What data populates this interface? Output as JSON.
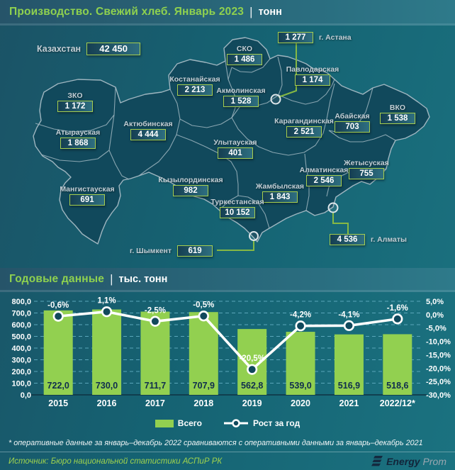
{
  "header": {
    "title": "Производство. Свежий хлеб. Январь 2023",
    "separator": "|",
    "unit": "тонн"
  },
  "map": {
    "country": {
      "name": "Казахстан",
      "value": "42 450"
    },
    "regions": [
      {
        "name": "г. Астана",
        "value": "1 277"
      },
      {
        "name": "СКО",
        "value": "1 486"
      },
      {
        "name": "Павлодарская",
        "value": "1 174"
      },
      {
        "name": "Костанайская",
        "value": "2 213"
      },
      {
        "name": "Акмолинская",
        "value": "1 528"
      },
      {
        "name": "ЗКО",
        "value": "1 172"
      },
      {
        "name": "Актюбинская",
        "value": "4 444"
      },
      {
        "name": "Атырауская",
        "value": "1 868"
      },
      {
        "name": "Карагандинская",
        "value": "2 521"
      },
      {
        "name": "Абайская",
        "value": "703"
      },
      {
        "name": "ВКО",
        "value": "1 538"
      },
      {
        "name": "Улытауская",
        "value": "401"
      },
      {
        "name": "Мангистауская",
        "value": "691"
      },
      {
        "name": "Кызылординская",
        "value": "982"
      },
      {
        "name": "Жамбылская",
        "value": "1 843"
      },
      {
        "name": "Алматинская",
        "value": "2 546"
      },
      {
        "name": "Жетысуская",
        "value": "755"
      },
      {
        "name": "Туркестанская",
        "value": "10 152"
      },
      {
        "name": "г. Шымкент",
        "value": "619"
      },
      {
        "name": "г. Алматы",
        "value": "4 536"
      }
    ]
  },
  "annual": {
    "title": "Годовые данные",
    "separator": "|",
    "unit": "тыс. тонн"
  },
  "chart_data": {
    "type": "bar+line combo",
    "categories": [
      "2015",
      "2016",
      "2017",
      "2018",
      "2019",
      "2020",
      "2021",
      "2022/12*"
    ],
    "series": [
      {
        "name": "Всего",
        "type": "bar",
        "color": "#92d050",
        "values": [
          722.0,
          730.0,
          711.7,
          707.9,
          562.8,
          539.0,
          516.9,
          518.6
        ],
        "labels": [
          "722,0",
          "730,0",
          "711,7",
          "707,9",
          "562,8",
          "539,0",
          "516,9",
          "518,6"
        ]
      },
      {
        "name": "Рост за год",
        "type": "line",
        "color": "#ffffff",
        "values": [
          -0.6,
          1.1,
          -2.5,
          -0.5,
          -20.5,
          -4.2,
          -4.1,
          -1.6
        ],
        "labels": [
          "-0,6%",
          "1,1%",
          "-2,5%",
          "-0,5%",
          "-20,5%",
          "-4,2%",
          "-4,1%",
          "-1,6%"
        ]
      }
    ],
    "left_axis": {
      "min": 0,
      "max": 800,
      "step": 100,
      "ticks": [
        "0,0",
        "100,0",
        "200,0",
        "300,0",
        "400,0",
        "500,0",
        "600,0",
        "700,0",
        "800,0"
      ]
    },
    "right_axis": {
      "min": -30,
      "max": 5,
      "step": 5,
      "ticks": [
        "5,0%",
        "0,0%",
        "-5,0%",
        "-10,0%",
        "-15,0%",
        "-20,0%",
        "-25,0%",
        "-30,0%"
      ]
    },
    "grid": "horizontal dashed",
    "legend_position": "bottom"
  },
  "footnote": "* оперативные данные за январь–декабрь 2022 сравниваются с оперативными данными за январь–декабрь 2021",
  "source": "Источник: Бюро национальной статистики АСПиР РК",
  "logo": {
    "bold": "Energy",
    "light": "Prom"
  }
}
